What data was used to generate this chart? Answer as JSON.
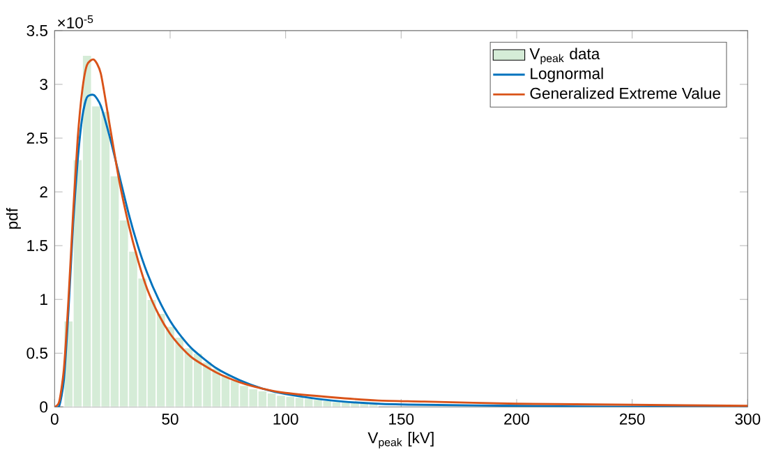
{
  "chart_data": {
    "type": "histogram",
    "xlabel": "V$_{peak}$ [kV]",
    "ylabel": "pdf",
    "annotations": [
      "×10$^{-5}$"
    ],
    "xlim": [
      0,
      300
    ],
    "ylim": [
      0,
      3.5
    ],
    "xticks": [
      0,
      50,
      100,
      150,
      200,
      250,
      300
    ],
    "yticks": [
      0,
      0.5,
      1,
      1.5,
      2,
      2.5,
      3,
      3.5
    ],
    "legend": "top right",
    "grid": false,
    "series": [
      {
        "name": "V$_{peak}$ data",
        "color": "#d5ecd7",
        "bins": [
          0,
          4,
          8,
          12,
          16,
          20,
          24,
          28,
          32,
          36,
          40,
          44,
          48,
          52,
          56,
          60,
          64,
          68,
          72,
          76,
          80,
          84,
          88,
          92,
          96,
          100,
          104,
          108,
          112,
          116,
          120,
          124,
          128,
          132,
          136,
          140
        ],
        "values": [
          null,
          0.8,
          2.3,
          3.27,
          2.8,
          2.75,
          2.15,
          1.74,
          1.45,
          1.2,
          1.0,
          0.87,
          0.75,
          0.65,
          0.55,
          0.5,
          0.42,
          0.36,
          0.3,
          0.25,
          0.2,
          0.17,
          0.15,
          0.13,
          0.11,
          0.1,
          0.09,
          0.08,
          0.07,
          0.06,
          0.05,
          0.05,
          0.04,
          0.04,
          0.03
        ]
      },
      {
        "name": "Lognormal",
        "type": "line",
        "color": "#0072bd",
        "x": [
          0,
          2,
          4,
          6,
          8,
          10,
          12,
          14,
          17,
          20,
          24,
          28,
          32,
          36,
          40,
          45,
          50,
          55,
          60,
          70,
          80,
          90,
          100,
          120,
          140,
          160,
          200,
          250,
          300
        ],
        "values": [
          0,
          0.01,
          0.25,
          0.9,
          1.7,
          2.3,
          2.7,
          2.88,
          2.9,
          2.8,
          2.5,
          2.15,
          1.8,
          1.5,
          1.25,
          1.0,
          0.8,
          0.65,
          0.53,
          0.36,
          0.25,
          0.17,
          0.12,
          0.06,
          0.03,
          0.02,
          0.01,
          0,
          0
        ]
      },
      {
        "name": "Generalized Extreme Value",
        "type": "line",
        "color": "#d95319",
        "x": [
          0,
          2,
          4,
          6,
          8,
          10,
          12,
          14,
          17,
          20,
          24,
          28,
          32,
          36,
          40,
          45,
          50,
          55,
          60,
          70,
          80,
          90,
          100,
          120,
          140,
          160,
          200,
          250,
          300
        ],
        "values": [
          0,
          0.05,
          0.35,
          1.0,
          1.8,
          2.5,
          2.95,
          3.18,
          3.23,
          3.1,
          2.6,
          2.1,
          1.7,
          1.37,
          1.1,
          0.86,
          0.68,
          0.55,
          0.45,
          0.32,
          0.23,
          0.17,
          0.13,
          0.09,
          0.06,
          0.05,
          0.03,
          0.02,
          0.01
        ]
      }
    ]
  }
}
